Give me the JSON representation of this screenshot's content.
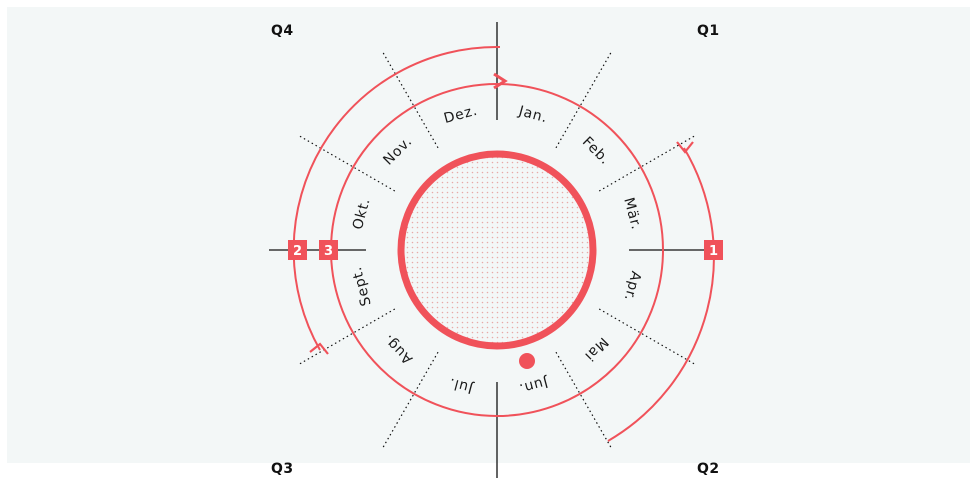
{
  "quarters": {
    "q1": "Q1",
    "q2": "Q2",
    "q3": "Q3",
    "q4": "Q4"
  },
  "months": [
    {
      "label": "Jan.",
      "angle": 15
    },
    {
      "label": "Feb.",
      "angle": 45
    },
    {
      "label": "Mär.",
      "angle": 75
    },
    {
      "label": "Apr.",
      "angle": 105
    },
    {
      "label": "Mai",
      "angle": 135
    },
    {
      "label": "Jun.",
      "angle": 165
    },
    {
      "label": "Jul.",
      "angle": 195
    },
    {
      "label": "Aug.",
      "angle": 225
    },
    {
      "label": "Sept.",
      "angle": 255
    },
    {
      "label": "Okt.",
      "angle": 285
    },
    {
      "label": "Nov.",
      "angle": 315
    },
    {
      "label": "Dez.",
      "angle": 345
    }
  ],
  "markers": [
    {
      "number": "1",
      "name": "marker-1"
    },
    {
      "number": "2",
      "name": "marker-2"
    },
    {
      "number": "3",
      "name": "marker-3"
    }
  ],
  "colors": {
    "accent": "#f0525a",
    "lines": "#111111",
    "background": "#f3f7f7",
    "dots": "#e7aaa8"
  }
}
